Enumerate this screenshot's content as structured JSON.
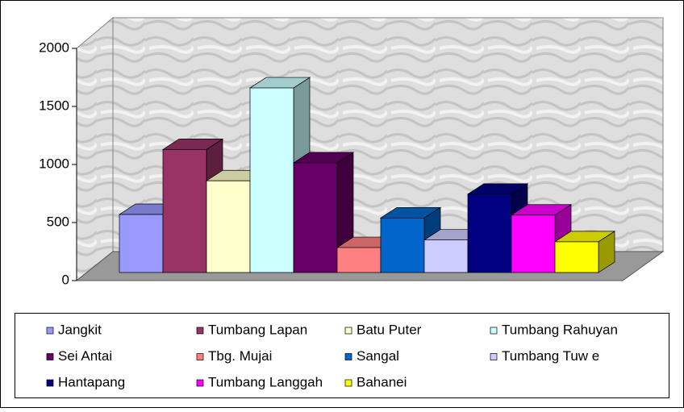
{
  "chart_data": {
    "type": "bar3d",
    "series": [
      {
        "name": "Jangkit",
        "color": "#9999ff",
        "values": [
          500
        ]
      },
      {
        "name": "Tumbang Lapan",
        "color": "#993366",
        "values": [
          1060
        ]
      },
      {
        "name": "Batu Puter",
        "color": "#ffffcc",
        "values": [
          790
        ]
      },
      {
        "name": "Tumbang Rahuyan",
        "color": "#ccffff",
        "values": [
          1590
        ]
      },
      {
        "name": "Sei Antai",
        "color": "#660066",
        "values": [
          945
        ]
      },
      {
        "name": "Tbg. Mujai",
        "color": "#ff8080",
        "values": [
          215
        ]
      },
      {
        "name": "Sangal",
        "color": "#0066cc",
        "values": [
          470
        ]
      },
      {
        "name": "Tumbang Tuw e",
        "color": "#ccccff",
        "values": [
          280
        ]
      },
      {
        "name": "Hantapang",
        "color": "#000080",
        "values": [
          675
        ]
      },
      {
        "name": "Tumbang Langgah",
        "color": "#ff00ff",
        "values": [
          495
        ]
      },
      {
        "name": "Bahanei",
        "color": "#ffff00",
        "values": [
          265
        ]
      }
    ],
    "ylim": [
      0,
      2000
    ],
    "yticks": [
      0,
      500,
      1000,
      1500,
      2000
    ],
    "legend": "bottom"
  }
}
